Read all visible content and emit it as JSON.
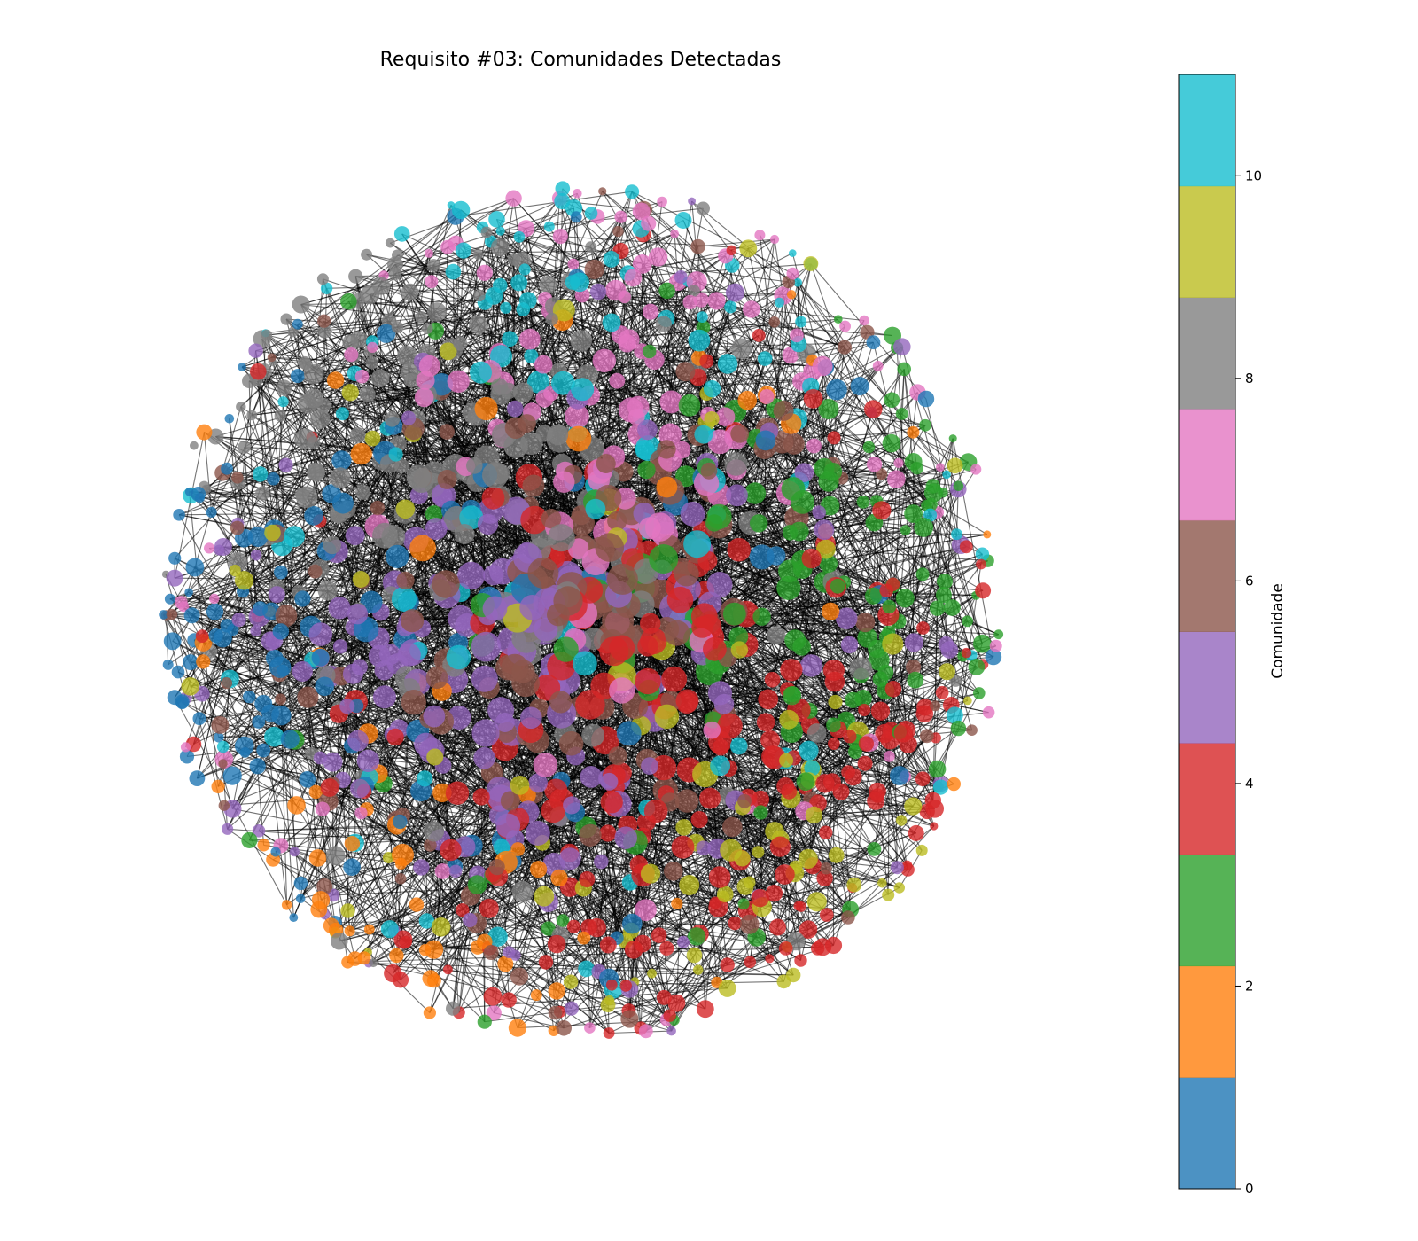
{
  "figure": {
    "title": "Requisito #03: Comunidades Detectadas"
  },
  "colorbar": {
    "label": "Comunidade",
    "range": [
      0,
      11
    ],
    "ticks": [
      "0",
      "2",
      "4",
      "6",
      "8",
      "10"
    ],
    "tick_values": [
      0,
      2,
      4,
      6,
      8,
      10
    ],
    "bands": [
      {
        "community": 0,
        "color": "#1f77b4"
      },
      {
        "community": 1,
        "color": "#ff7f0e"
      },
      {
        "community": 2,
        "color": "#2ca02c"
      },
      {
        "community": 3,
        "color": "#d62728"
      },
      {
        "community": 4,
        "color": "#9467bd"
      },
      {
        "community": 5,
        "color": "#8c564b"
      },
      {
        "community": 6,
        "color": "#e377c2"
      },
      {
        "community": 7,
        "color": "#7f7f7f"
      },
      {
        "community": 8,
        "color": "#bcbd22"
      },
      {
        "community": 9,
        "color": "#17becf"
      }
    ],
    "alpha": 0.8
  },
  "network": {
    "edge_color": "#000000",
    "community_colors": [
      "#1f77b4",
      "#ff7f0e",
      "#2ca02c",
      "#d62728",
      "#9467bd",
      "#8c564b",
      "#e377c2",
      "#7f7f7f",
      "#bcbd22",
      "#17becf"
    ],
    "community_focus": [
      {
        "community": 0,
        "region": "left-rim"
      },
      {
        "community": 3,
        "region": "lower-right"
      },
      {
        "community": 2,
        "region": "right"
      },
      {
        "community": 4,
        "region": "center-left"
      },
      {
        "community": 5,
        "region": "scattered"
      },
      {
        "community": 6,
        "region": "top"
      },
      {
        "community": 7,
        "region": "upper-left"
      },
      {
        "community": 8,
        "region": "bottom-right-rim"
      },
      {
        "community": 9,
        "region": "top-and-bottom-rim"
      },
      {
        "community": 1,
        "region": "bottom-left-rim"
      }
    ]
  }
}
